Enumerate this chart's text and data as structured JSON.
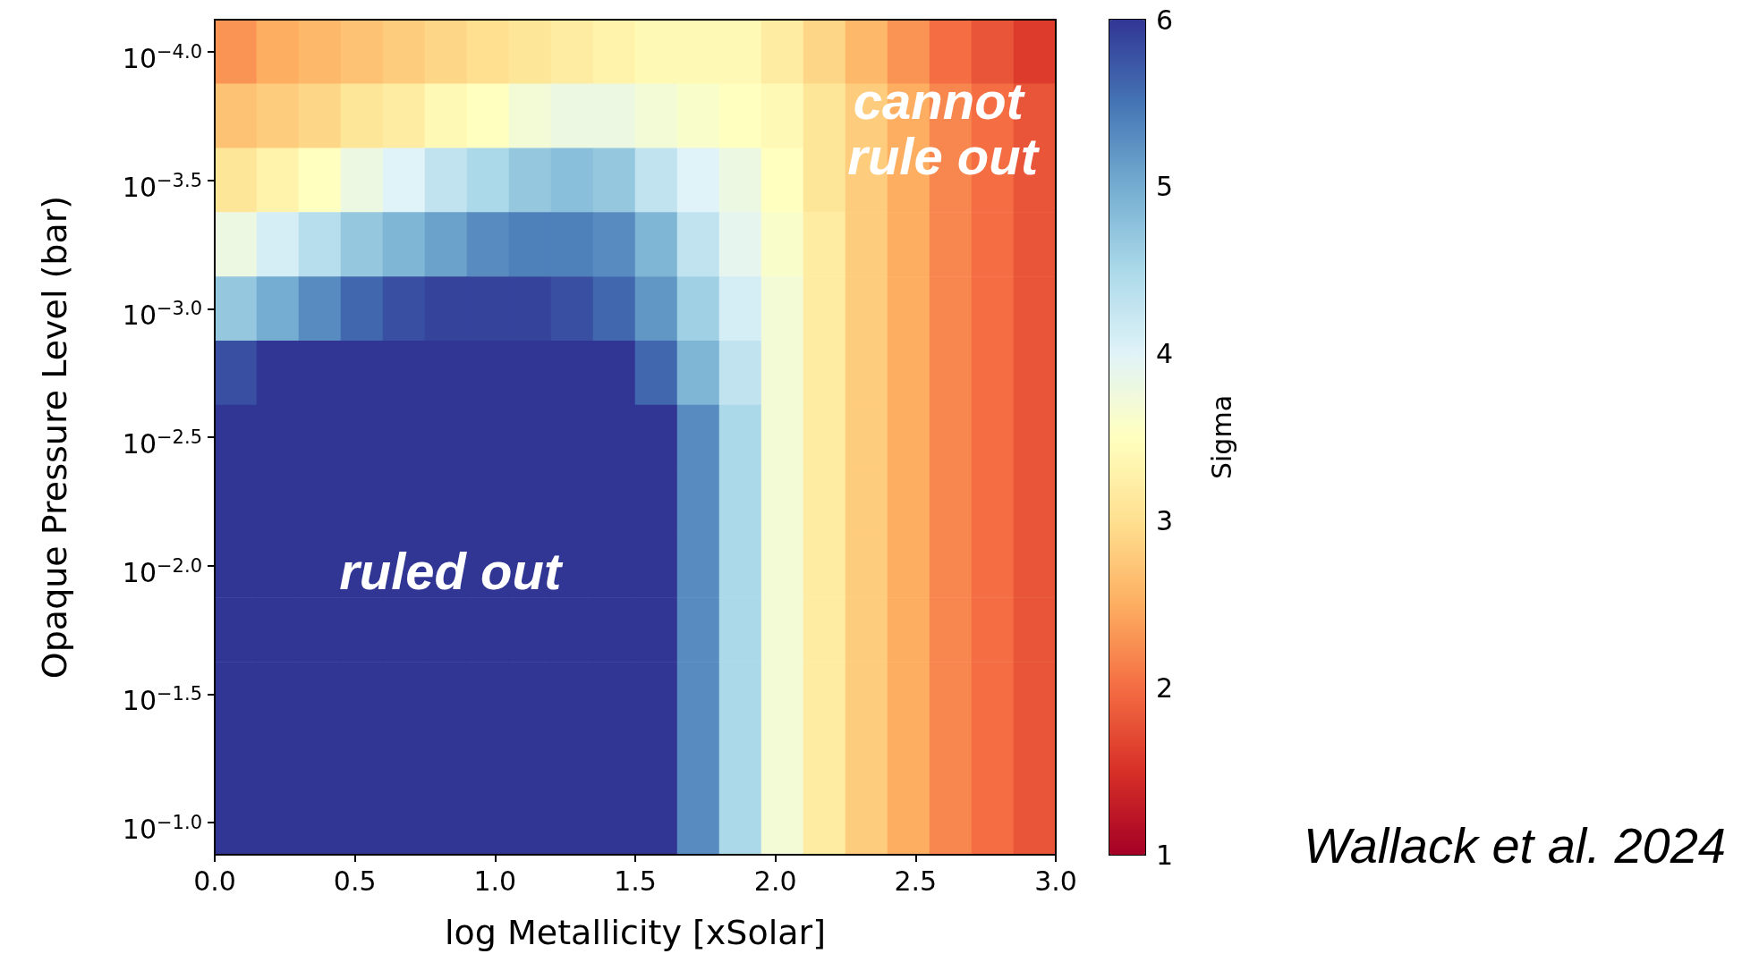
{
  "chart_data": {
    "type": "heatmap",
    "xlabel": "log Metallicity [xSolar]",
    "ylabel": "Opaque Pressure Level (bar)",
    "clabel": "Sigma",
    "xlim": [
      0,
      3
    ],
    "xticks": [
      {
        "value": 0,
        "label": "0.0"
      },
      {
        "value": 0.5,
        "label": "0.5"
      },
      {
        "value": 1,
        "label": "1.0"
      },
      {
        "value": 1.5,
        "label": "1.5"
      },
      {
        "value": 2,
        "label": "2.0"
      },
      {
        "value": 2.5,
        "label": "2.5"
      },
      {
        "value": 3,
        "label": "3.0"
      }
    ],
    "y_categories": [
      "10$^{−4.0}$",
      null,
      "10$^{−3.5}$",
      null,
      "10$^{−3.0}$",
      null,
      "10$^{−2.5}$",
      null,
      "10$^{−2.0}$",
      null,
      "10$^{−1.5}$",
      null,
      "10$^{−1.0}$"
    ],
    "clim": [
      1,
      6
    ],
    "cticks": [
      1,
      2,
      3,
      4,
      5,
      6
    ],
    "cells": [
      [
        2.3,
        2.5,
        2.6,
        2.7,
        2.8,
        2.9,
        3.0,
        3.1,
        3.2,
        3.3,
        3.4,
        3.4,
        3.4,
        3.2,
        2.9,
        2.6,
        2.3,
        2.0,
        1.8,
        1.6
      ],
      [
        2.7,
        2.8,
        2.9,
        3.1,
        3.2,
        3.4,
        3.5,
        3.7,
        3.8,
        3.8,
        3.7,
        3.6,
        3.5,
        3.4,
        3.1,
        2.8,
        2.5,
        2.2,
        2.0,
        1.8
      ],
      [
        3.1,
        3.3,
        3.5,
        3.8,
        4.0,
        4.3,
        4.5,
        4.7,
        4.8,
        4.7,
        4.3,
        4.0,
        3.8,
        3.5,
        3.1,
        2.8,
        2.5,
        2.2,
        2.0,
        1.8
      ],
      [
        3.8,
        4.1,
        4.4,
        4.7,
        4.9,
        5.1,
        5.3,
        5.4,
        5.4,
        5.3,
        4.9,
        4.3,
        3.9,
        3.6,
        3.2,
        2.8,
        2.5,
        2.2,
        2.0,
        1.8
      ],
      [
        4.7,
        5.0,
        5.3,
        5.6,
        5.8,
        5.9,
        5.9,
        5.9,
        5.8,
        5.6,
        5.2,
        4.6,
        4.1,
        3.7,
        3.2,
        2.8,
        2.5,
        2.2,
        2.0,
        1.8
      ],
      [
        5.8,
        6,
        6,
        6,
        6,
        6,
        6,
        6,
        6,
        6,
        5.6,
        4.9,
        4.3,
        3.7,
        3.2,
        2.8,
        2.5,
        2.2,
        2.0,
        1.8
      ],
      [
        6,
        6,
        6,
        6,
        6,
        6,
        6,
        6,
        6,
        6,
        6,
        5.3,
        4.5,
        3.7,
        3.2,
        2.8,
        2.5,
        2.2,
        2.0,
        1.8
      ],
      [
        6,
        6,
        6,
        6,
        6,
        6,
        6,
        6,
        6,
        6,
        6,
        5.3,
        4.5,
        3.7,
        3.2,
        2.8,
        2.5,
        2.2,
        2.0,
        1.8
      ],
      [
        6,
        6,
        6,
        6,
        6,
        6,
        6,
        6,
        6,
        6,
        6,
        5.3,
        4.5,
        3.7,
        3.2,
        2.8,
        2.5,
        2.2,
        2.0,
        1.8
      ],
      [
        6,
        6,
        6,
        6,
        6,
        6,
        6,
        6,
        6,
        6,
        6,
        5.3,
        4.5,
        3.7,
        3.2,
        2.8,
        2.5,
        2.2,
        2.0,
        1.8
      ],
      [
        6,
        6,
        6,
        6,
        6,
        6,
        6,
        6,
        6,
        6,
        6,
        5.3,
        4.5,
        3.7,
        3.2,
        2.8,
        2.5,
        2.2,
        2.0,
        1.8
      ],
      [
        6,
        6,
        6,
        6,
        6,
        6,
        6,
        6,
        6,
        6,
        6,
        5.3,
        4.5,
        3.7,
        3.2,
        2.8,
        2.5,
        2.2,
        2.0,
        1.8
      ],
      [
        6,
        6,
        6,
        6,
        6,
        6,
        6,
        6,
        6,
        6,
        6,
        5.3,
        4.5,
        3.7,
        3.2,
        2.8,
        2.5,
        2.2,
        2.0,
        1.8
      ]
    ],
    "annotations": [
      "ruled out",
      "cannot rule out",
      "Wallack et al. 2024"
    ]
  }
}
